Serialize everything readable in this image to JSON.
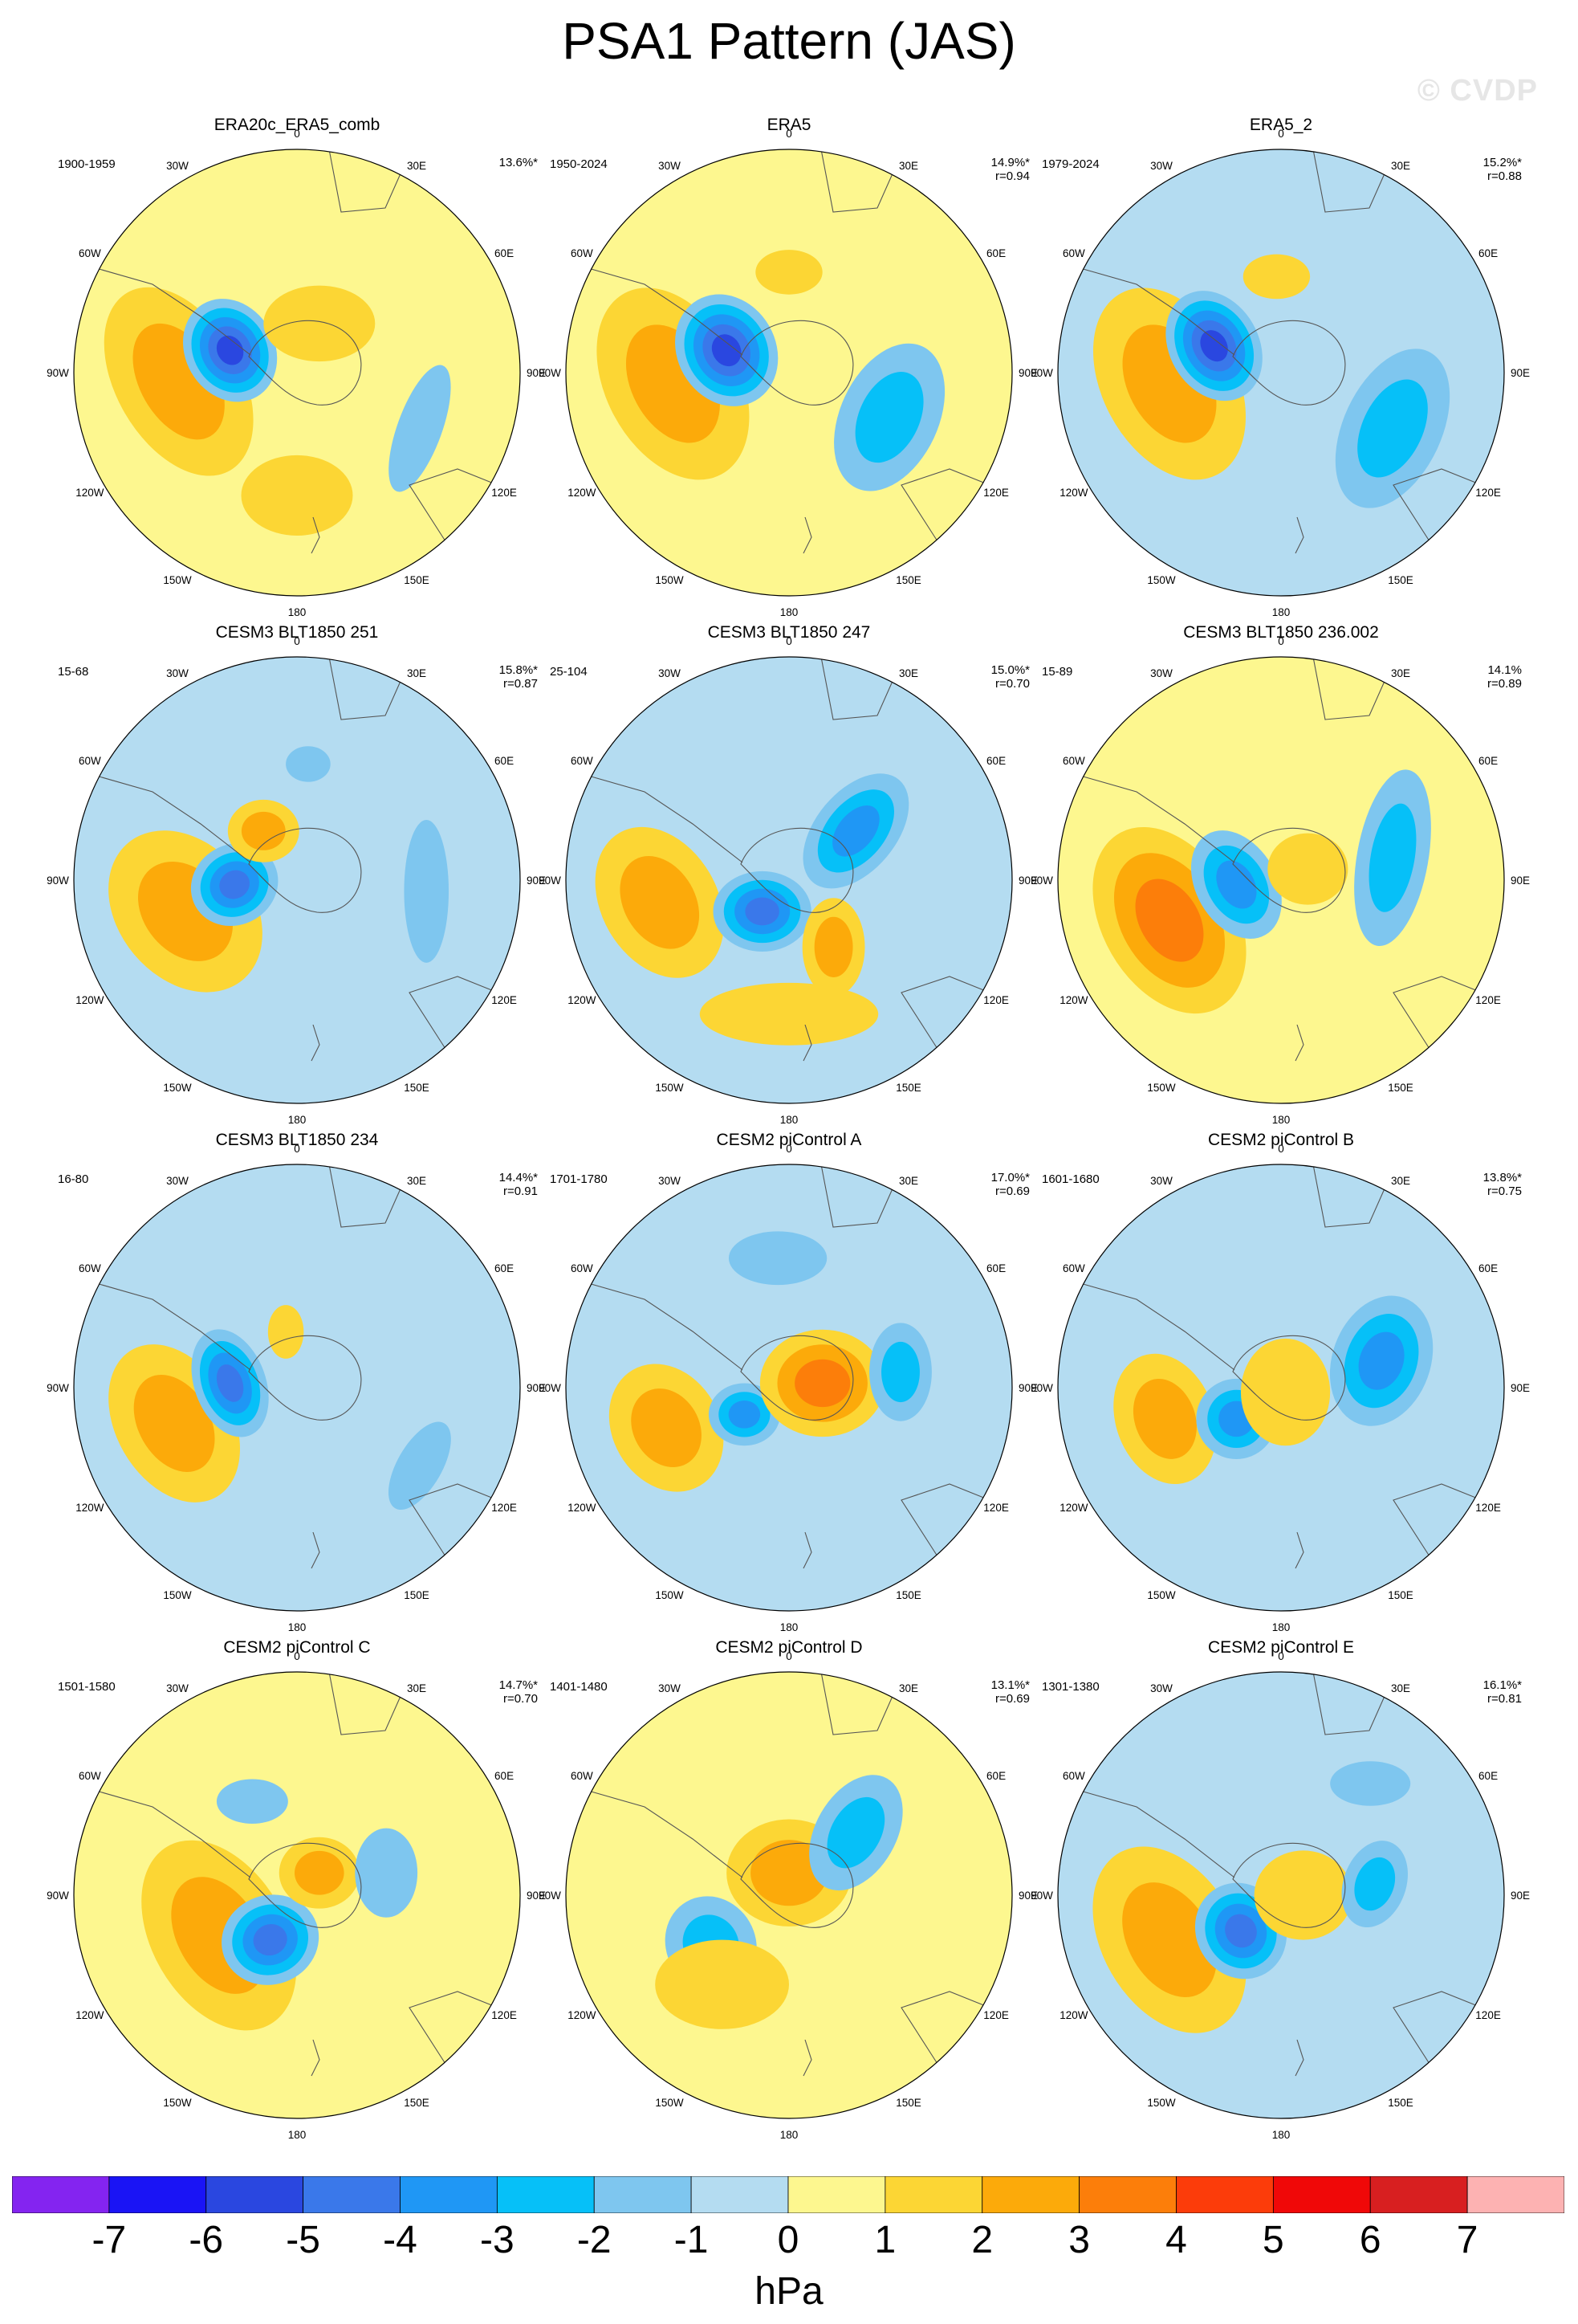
{
  "title": "PSA1 Pattern (JAS)",
  "watermark": "© CVDP",
  "colorbar": {
    "units": "hPa",
    "ticks": [
      "-7",
      "-6",
      "-5",
      "-4",
      "-3",
      "-2",
      "-1",
      "0",
      "1",
      "2",
      "3",
      "4",
      "5",
      "6",
      "7"
    ],
    "colors": [
      "#8424f0",
      "#1a14f5",
      "#2a47e0",
      "#3a78ea",
      "#1f97f5",
      "#06c0f8",
      "#7ec6ef",
      "#b4dcf1",
      "#fdf78f",
      "#fcd634",
      "#fcaa0a",
      "#fc7e0a",
      "#fc3c0a",
      "#f00808",
      "#d81f20",
      "#fdb2b2"
    ]
  },
  "longitude_labels": [
    "0",
    "30E",
    "60E",
    "90E",
    "120E",
    "150E",
    "180",
    "150W",
    "120W",
    "90W",
    "60W",
    "30W"
  ],
  "chart_data": [
    {
      "type": "heatmap",
      "title": "ERA20c_ERA5_comb",
      "period": "1900-1959",
      "stats": [
        "13.6%*"
      ]
    },
    {
      "type": "heatmap",
      "title": "ERA5",
      "period": "1950-2024",
      "stats": [
        "14.9%*",
        "r=0.94"
      ]
    },
    {
      "type": "heatmap",
      "title": "ERA5_2",
      "period": "1979-2024",
      "stats": [
        "15.2%*",
        "r=0.88"
      ]
    },
    {
      "type": "heatmap",
      "title": "CESM3 BLT1850 251",
      "period": "15-68",
      "stats": [
        "15.8%*",
        "r=0.87"
      ]
    },
    {
      "type": "heatmap",
      "title": "CESM3 BLT1850 247",
      "period": "25-104",
      "stats": [
        "15.0%*",
        "r=0.70"
      ]
    },
    {
      "type": "heatmap",
      "title": "CESM3 BLT1850 236.002",
      "period": "15-89",
      "stats": [
        "14.1%",
        "r=0.89"
      ]
    },
    {
      "type": "heatmap",
      "title": "CESM3 BLT1850 234",
      "period": "16-80",
      "stats": [
        "14.4%*",
        "r=0.91"
      ]
    },
    {
      "type": "heatmap",
      "title": "CESM2 piControl A",
      "period": "1701-1780",
      "stats": [
        "17.0%*",
        "r=0.69"
      ]
    },
    {
      "type": "heatmap",
      "title": "CESM2 piControl B",
      "period": "1601-1680",
      "stats": [
        "13.8%*",
        "r=0.75"
      ]
    },
    {
      "type": "heatmap",
      "title": "CESM2 piControl C",
      "period": "1501-1580",
      "stats": [
        "14.7%*",
        "r=0.70"
      ]
    },
    {
      "type": "heatmap",
      "title": "CESM2 piControl D",
      "period": "1401-1480",
      "stats": [
        "13.1%*",
        "r=0.69"
      ]
    },
    {
      "type": "heatmap",
      "title": "CESM2 piControl E",
      "period": "1301-1380",
      "stats": [
        "16.1%*",
        "r=0.81"
      ]
    }
  ]
}
